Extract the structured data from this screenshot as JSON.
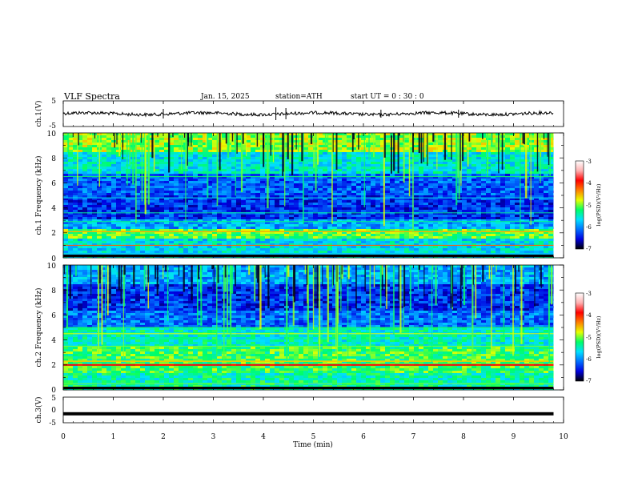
{
  "header": {
    "title": "VLF  Spectra",
    "date": "Jan. 15, 2025",
    "station": "station=ATH",
    "start_ut": "start  UT  =   0 : 30 : 0"
  },
  "chart_data": [
    {
      "type": "line",
      "title": "",
      "ylabel": "ch.1(V)",
      "xlabel": "",
      "xlim": [
        0,
        10
      ],
      "ylim": [
        -5,
        5
      ],
      "y_ticks": [
        "5",
        "-5"
      ],
      "series": [
        {
          "x": [
            0,
            9.8
          ],
          "y": [
            0,
            0
          ],
          "color": "#000000"
        }
      ]
    },
    {
      "type": "heatmap",
      "title": "",
      "ylabel": "ch.1  Frequency  (kHz)",
      "xlim": [
        0,
        10
      ],
      "ylim": [
        0,
        10
      ],
      "y_ticks": [
        "0",
        "2",
        "4",
        "6",
        "8",
        "10"
      ],
      "data_x_extent": [
        0,
        9.8
      ],
      "colorbar": {
        "label": "log(PSD)(V²/Hz)",
        "range": [
          -7,
          -3
        ],
        "ticks": [
          "-3",
          "-4",
          "-5",
          "-6",
          "-7"
        ],
        "colors": [
          "#000000",
          "#0000e0",
          "#0070ff",
          "#00e0ff",
          "#00ff66",
          "#e8ff00",
          "#ff8000",
          "#ff0000",
          "#ffb0b0",
          "#ffffff"
        ]
      }
    },
    {
      "type": "heatmap",
      "title": "",
      "ylabel": "ch.2  Frequency  (kHz)",
      "xlim": [
        0,
        10
      ],
      "ylim": [
        0,
        10
      ],
      "y_ticks": [
        "0",
        "2",
        "4",
        "6",
        "8",
        "10"
      ],
      "data_x_extent": [
        0,
        9.8
      ],
      "colorbar": {
        "label": "log(PSD)(V²/Hz)",
        "range": [
          -7,
          -3
        ],
        "ticks": [
          "-3",
          "-4",
          "-5",
          "-6",
          "-7"
        ],
        "colors": [
          "#000000",
          "#0000e0",
          "#0070ff",
          "#00e0ff",
          "#00ff66",
          "#e8ff00",
          "#ff8000",
          "#ff0000",
          "#ffb0b0",
          "#ffffff"
        ]
      }
    },
    {
      "type": "line",
      "title": "",
      "ylabel": "ch.3(V)",
      "xlabel": "Time  (min)",
      "xlim": [
        0,
        10
      ],
      "ylim": [
        -5,
        5
      ],
      "y_ticks": [
        "5",
        "0",
        "-5"
      ],
      "x_ticks": [
        "0",
        "1",
        "2",
        "3",
        "4",
        "5",
        "6",
        "7",
        "8",
        "9",
        "10"
      ],
      "series": [
        {
          "x": [
            0,
            9.8
          ],
          "y": [
            -1.5,
            -1.5
          ],
          "color": "#000000"
        }
      ]
    }
  ]
}
